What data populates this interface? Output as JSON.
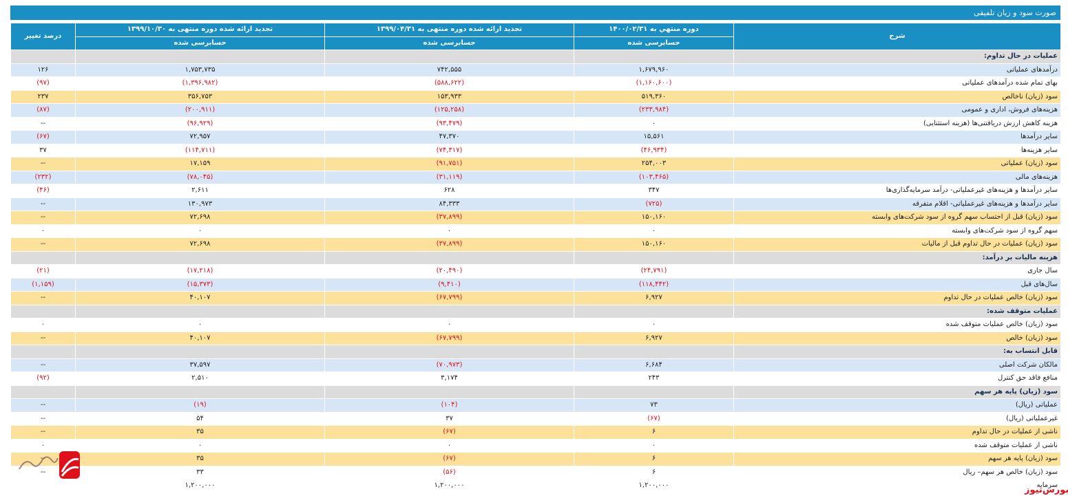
{
  "title": "صورت سود و زیان تلفیقی",
  "headers": {
    "desc": "شرح",
    "col1": "دوره منتهي به ۱۴۰۰/۰۲/۳۱",
    "col2": "تجدید ارائه شده دوره منتهی به ۱۳۹۹/۰۴/۳۱",
    "col3": "تجدید ارائه شده دوره منتهی به ۱۳۹۹/۱۰/۳۰",
    "col4": "درصد تغییر",
    "audit1": "حسابرسی شده",
    "audit2": "حسابرسی شده",
    "audit3": "حسابرسی شده"
  },
  "rows": [
    {
      "type": "section",
      "desc": "عملیات در حال تداوم:"
    },
    {
      "type": "blue",
      "desc": "درآمدهای عملیاتی",
      "c1": "۱,۶۷۹,۹۶۰",
      "c2": "۷۴۲,۵۵۵",
      "c3": "۱,۷۵۳,۷۳۵",
      "c4": "۱۲۶"
    },
    {
      "type": "white",
      "desc": "بهای تمام شده درآمدهای عملیاتی",
      "c1": "(۱,۱۶۰,۶۰۰)",
      "c2": "(۵۸۸,۶۲۲)",
      "c3": "(۱,۳۹۶,۹۸۲)",
      "c4": "(۹۷)"
    },
    {
      "type": "yellow",
      "desc": "سود (زیان) ناخالص",
      "c1": "۵۱۹,۳۶۰",
      "c2": "۱۵۳,۹۳۳",
      "c3": "۳۵۶,۷۵۳",
      "c4": "۲۳۷"
    },
    {
      "type": "blue",
      "desc": "هزینه‌های فروش، اداری و عمومی",
      "c1": "(۲۳۳,۹۸۴)",
      "c2": "(۱۲۵,۲۵۸)",
      "c3": "(۲۰۰,۹۱۱)",
      "c4": "(۸۷)"
    },
    {
      "type": "white",
      "desc": "هزینه کاهش ارزش دریافتنی‌ها (هزینه استثنایی)",
      "c1": "۰",
      "c2": "(۹۳,۴۷۹)",
      "c3": "(۹۶,۹۲۹)",
      "c4": "--"
    },
    {
      "type": "blue",
      "desc": "سایر درآمدها",
      "c1": "۱۵,۵۶۱",
      "c2": "۴۷,۳۷۰",
      "c3": "۷۲,۹۵۷",
      "c4": "(۶۷)"
    },
    {
      "type": "white",
      "desc": "سایر هزینه‌ها",
      "c1": "(۴۶,۹۳۴)",
      "c2": "(۷۴,۳۱۷)",
      "c3": "(۱۱۴,۷۱۱)",
      "c4": "۳۷"
    },
    {
      "type": "yellow",
      "desc": "سود (زیان) عملیاتی",
      "c1": "۲۵۴,۰۰۳",
      "c2": "(۹۱,۷۵۱)",
      "c3": "۱۷,۱۵۹",
      "c4": "--"
    },
    {
      "type": "blue",
      "desc": "هزینه‌های مالی",
      "c1": "(۱۰۳,۴۶۵)",
      "c2": "(۳۱,۱۱۹)",
      "c3": "(۷۸,۰۴۵)",
      "c4": "(۲۳۲)"
    },
    {
      "type": "white",
      "desc": "سایر درآمدها و هزینه‌های غیرعملیاتی- درآمد سرمایه‌گذاری‌ها",
      "c1": "۳۴۷",
      "c2": "۶۲۸",
      "c3": "۲,۶۱۱",
      "c4": "(۴۶)"
    },
    {
      "type": "blue",
      "desc": "سایر درآمدها و هزینه‌های غیرعملیاتی- اقلام متفرقه",
      "c1": "(۷۲۵)",
      "c2": "۸۴,۳۳۳",
      "c3": "۱۳۰,۹۷۳",
      "c4": "--"
    },
    {
      "type": "yellow",
      "desc": "سود (زیان) قبل از احتساب سهم گروه از سود شرکت‌های وابسته",
      "c1": "۱۵۰,۱۶۰",
      "c2": "(۳۷,۸۹۹)",
      "c3": "۷۲,۶۹۸",
      "c4": "--"
    },
    {
      "type": "white",
      "desc": "سهم گروه از سود شرکت‌های وابسته",
      "c1": "۰",
      "c2": "۰",
      "c3": "۰",
      "c4": "۰"
    },
    {
      "type": "yellow",
      "desc": "سود (زیان) عملیات در حال تداوم قبل از مالیات",
      "c1": "۱۵۰,۱۶۰",
      "c2": "(۳۷,۸۹۹)",
      "c3": "۷۲,۶۹۸",
      "c4": "--"
    },
    {
      "type": "section",
      "desc": "هزینه مالیات بر درآمد:"
    },
    {
      "type": "white",
      "desc": "سال جاری",
      "c1": "(۲۴,۷۹۱)",
      "c2": "(۲۰,۴۹۰)",
      "c3": "(۱۷,۲۱۸)",
      "c4": "(۲۱)"
    },
    {
      "type": "blue",
      "desc": "سال‌های قبل",
      "c1": "(۱۱۸,۴۴۲)",
      "c2": "(۹,۴۱۰)",
      "c3": "(۱۵,۳۷۳)",
      "c4": "(۱,۱۵۹)"
    },
    {
      "type": "yellow",
      "desc": "سود (زیان) خالص عملیات در حال تداوم",
      "c1": "۶,۹۲۷",
      "c2": "(۶۷,۷۹۹)",
      "c3": "۴۰,۱۰۷",
      "c4": "--"
    },
    {
      "type": "section",
      "desc": "عملیات متوقف شده:"
    },
    {
      "type": "white",
      "desc": "سود (زیان) خالص عملیات متوقف شده",
      "c1": "۰",
      "c2": "۰",
      "c3": "۰",
      "c4": "۰"
    },
    {
      "type": "yellow",
      "desc": "سود (زیان) خالص",
      "c1": "۶,۹۲۷",
      "c2": "(۶۷,۷۹۹)",
      "c3": "۴۰,۱۰۷",
      "c4": "--"
    },
    {
      "type": "section",
      "desc": "قابل انتساب به:"
    },
    {
      "type": "blue",
      "desc": "مالکان شرکت اصلی",
      "c1": "۶,۶۸۴",
      "c2": "(۷۰,۹۷۳)",
      "c3": "۳۷,۵۹۷",
      "c4": "--"
    },
    {
      "type": "white",
      "desc": "منافع فاقد حق کنترل",
      "c1": "۲۴۳",
      "c2": "۳,۱۷۴",
      "c3": "۲,۵۱۰",
      "c4": "(۹۲)"
    },
    {
      "type": "section",
      "desc": "سود (زیان) پایه هر سهم"
    },
    {
      "type": "blue",
      "desc": "عملیاتی (ریال)",
      "c1": "۷۳",
      "c2": "(۱۰۴)",
      "c3": "(۱۹)",
      "c4": "--"
    },
    {
      "type": "white",
      "desc": "غیرعملیاتی (ریال)",
      "c1": "(۶۷)",
      "c2": "۳۷",
      "c3": "۵۴",
      "c4": "--"
    },
    {
      "type": "yellow",
      "desc": "ناشی از عملیات در حال تداوم",
      "c1": "۶",
      "c2": "(۶۷)",
      "c3": "۳۵",
      "c4": "--"
    },
    {
      "type": "white",
      "desc": "ناشی از عملیات متوقف شده",
      "c1": "۰",
      "c2": "۰",
      "c3": "۰",
      "c4": "۰"
    },
    {
      "type": "yellow",
      "desc": "سود (زیان) پایه هر سهم",
      "c1": "۶",
      "c2": "(۶۷)",
      "c3": "۳۵",
      "c4": "--"
    },
    {
      "type": "white",
      "desc": "سود (زیان) خالص هر سهم– ریال",
      "c1": "۶",
      "c2": "(۵۶)",
      "c3": "۳۳",
      "c4": "--"
    },
    {
      "type": "last",
      "desc": "سرمایه",
      "c1": "۱,۲۰۰,۰۰۰",
      "c2": "۱,۲۰۰,۰۰۰",
      "c3": "۱,۲۰۰,۰۰۰",
      "c4": ""
    }
  ],
  "watermark": {
    "text": "بورس‌نیوز",
    "logo_label": "بورس نیوز",
    "accent": "#e0101a"
  }
}
